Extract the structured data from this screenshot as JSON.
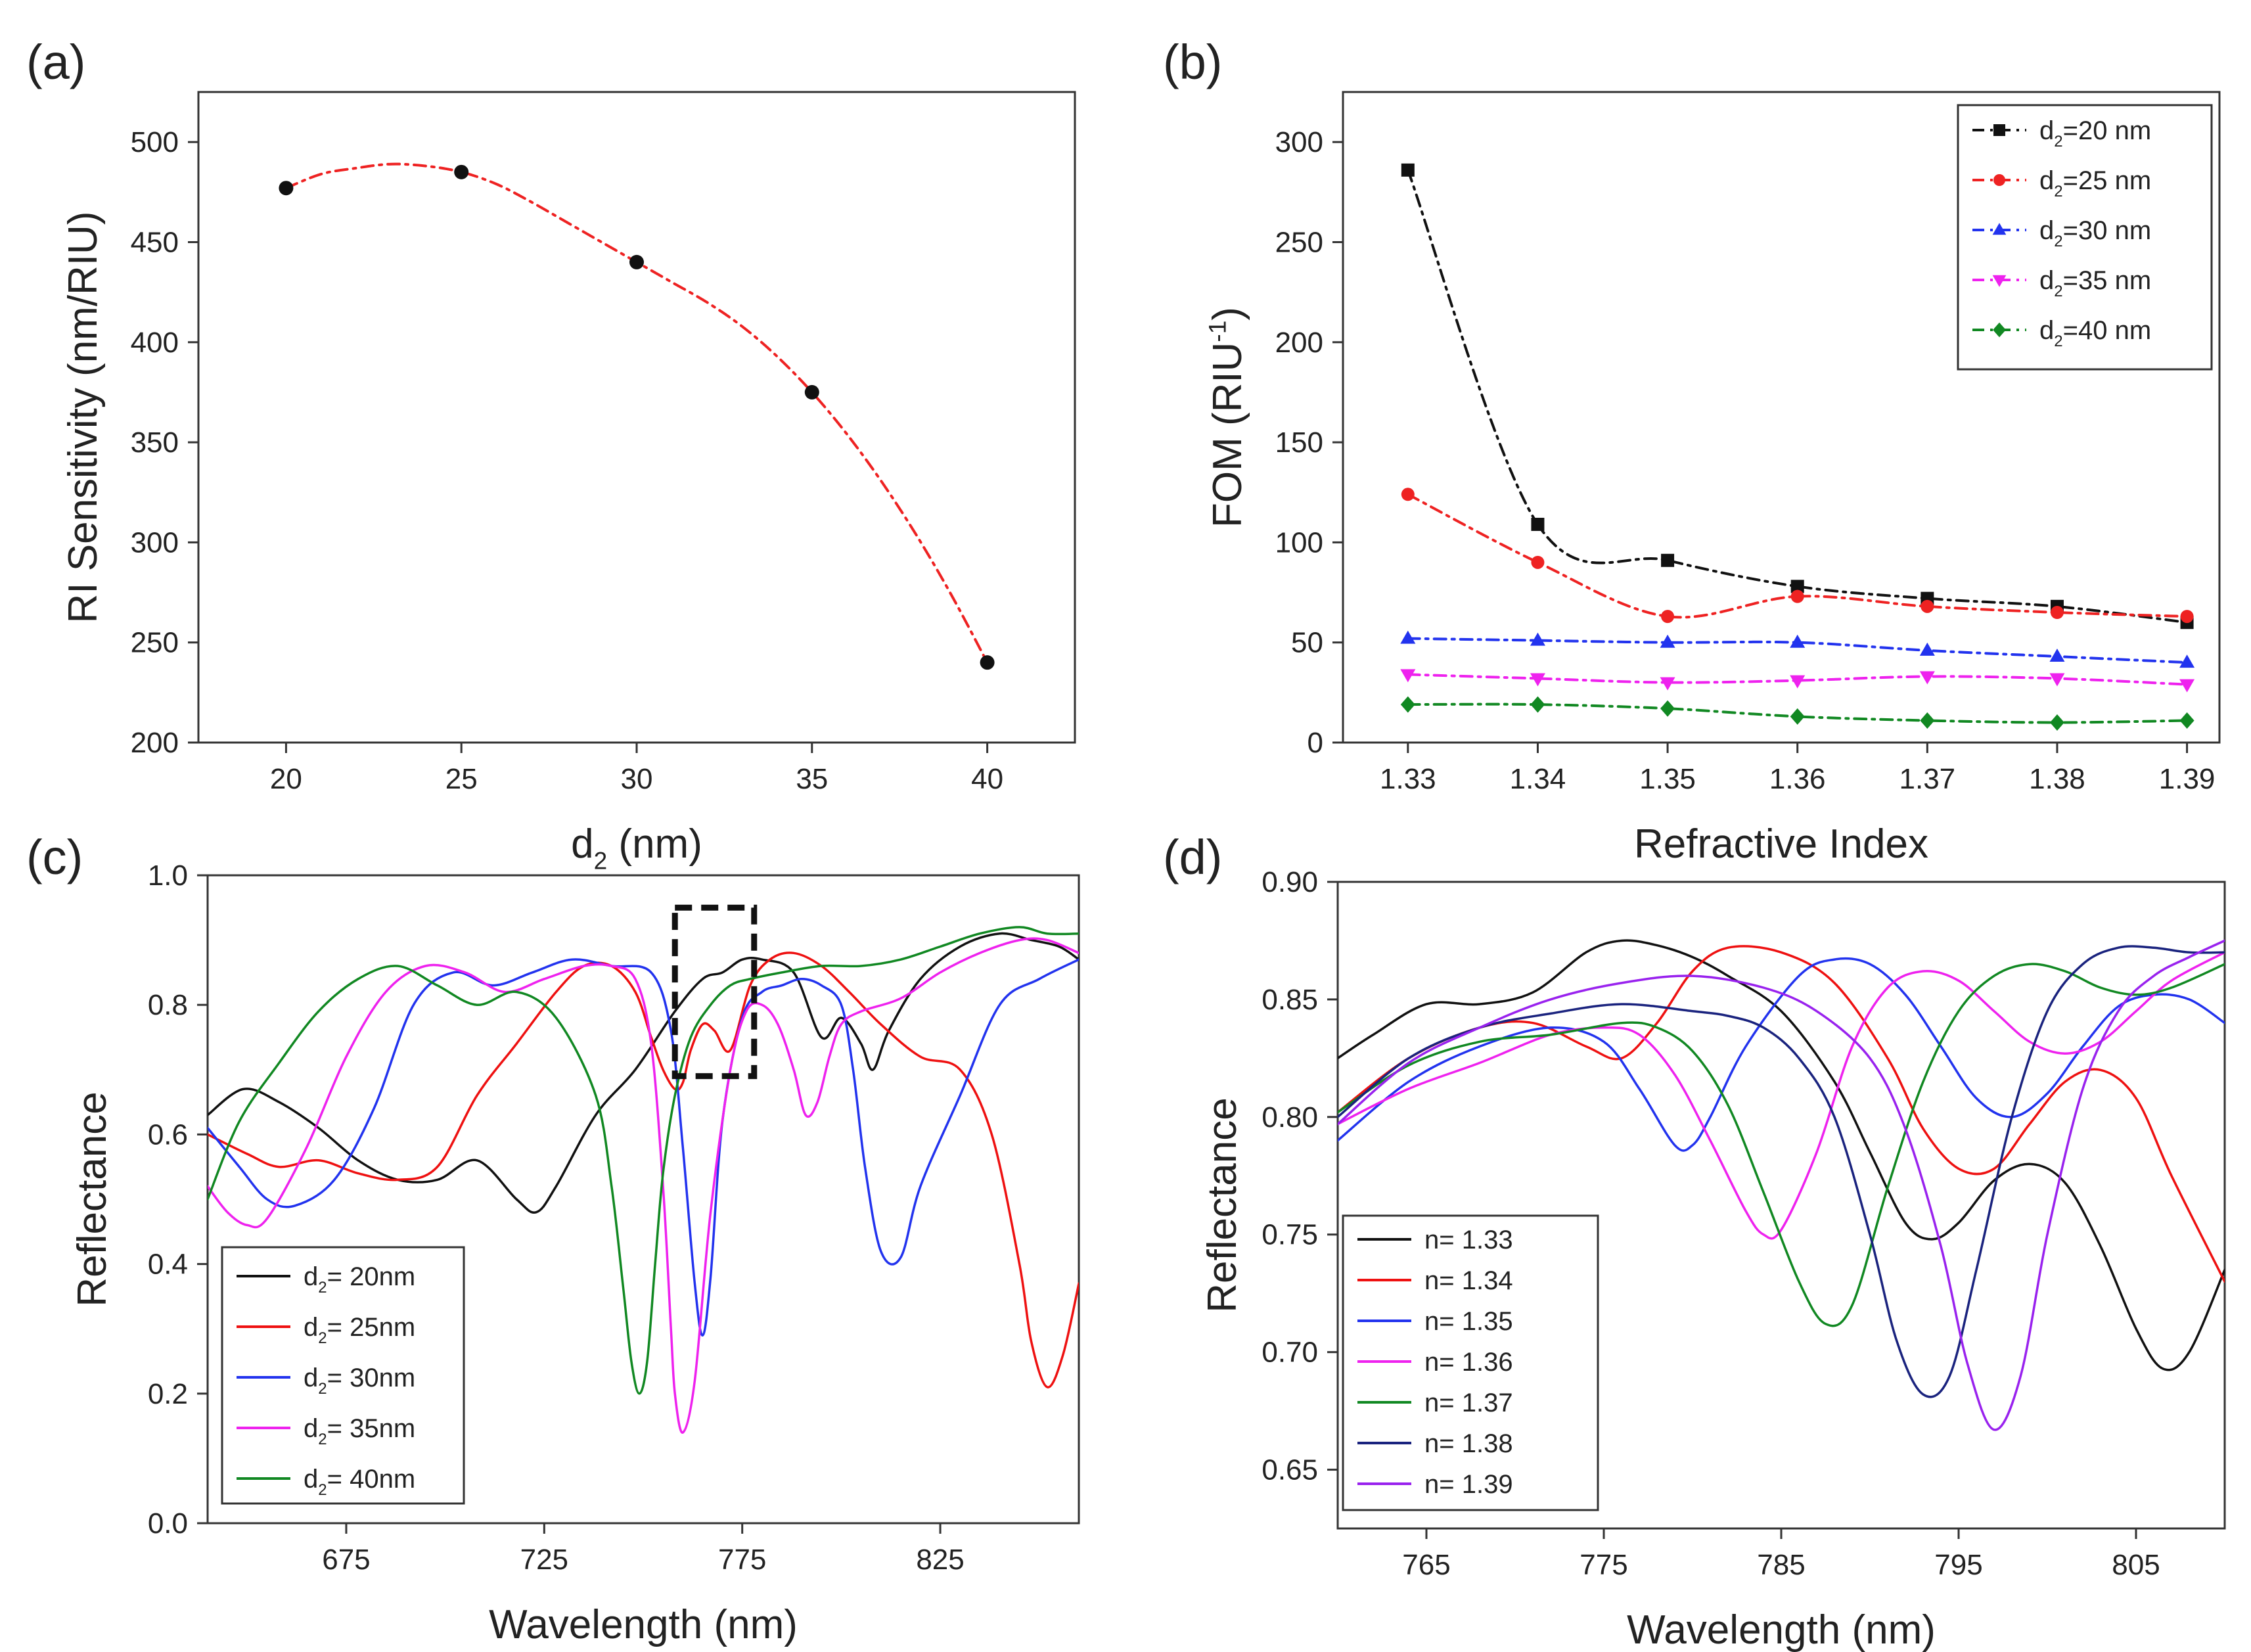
{
  "chart_data": [
    {
      "id": "a",
      "panel_label": "(a)",
      "type": "line",
      "xlabel": {
        "main": "d",
        "sub": "2",
        "rest": " (nm)"
      },
      "ylabel": "RI Sensitivity (nm/RIU)",
      "xlim": [
        17.5,
        42.5
      ],
      "ylim": [
        200,
        525
      ],
      "xticks": [
        20,
        25,
        30,
        35,
        40
      ],
      "yticks": [
        200,
        250,
        300,
        350,
        400,
        450,
        500
      ],
      "series": [
        {
          "name": "RI sensitivity",
          "color": "#ee2222",
          "marker": "circle",
          "marker_color": "#111111",
          "dash": "dashdot",
          "x": [
            20,
            25,
            30,
            35,
            40
          ],
          "y": [
            477,
            485,
            440,
            375,
            240
          ],
          "curve_x": [
            20,
            21,
            22,
            23,
            24,
            25,
            26,
            27,
            28,
            29,
            30,
            31,
            32,
            33,
            34,
            35,
            36,
            37,
            38,
            39,
            40
          ],
          "curve_y": [
            477,
            484,
            487,
            489,
            488,
            485,
            479,
            470,
            460,
            450,
            440,
            430,
            420,
            408,
            393,
            375,
            354,
            330,
            303,
            273,
            240
          ]
        }
      ]
    },
    {
      "id": "b",
      "panel_label": "(b)",
      "type": "line",
      "xlabel": {
        "main": "Refractive Index",
        "sub": "",
        "rest": ""
      },
      "ylabel": {
        "main": "FOM (RIU",
        "sup": "-1",
        "rest": ")"
      },
      "xlim": [
        1.325,
        1.3925
      ],
      "ylim": [
        0,
        325
      ],
      "xticks": [
        "1.33",
        "1.34",
        "1.35",
        "1.36",
        "1.37",
        "1.38",
        "1.39"
      ],
      "yticks": [
        0,
        50,
        100,
        150,
        200,
        250,
        300
      ],
      "legend_position": "top-right",
      "series": [
        {
          "name_main": "d",
          "name_sub": "2",
          "name_rest": "=20 nm",
          "color": "#111111",
          "marker": "square",
          "x": [
            1.33,
            1.34,
            1.35,
            1.36,
            1.37,
            1.38,
            1.39
          ],
          "y": [
            286,
            109,
            91,
            78,
            72,
            68,
            60
          ]
        },
        {
          "name_main": "d",
          "name_sub": "2",
          "name_rest": "=25 nm",
          "color": "#ee2222",
          "marker": "circle",
          "x": [
            1.33,
            1.34,
            1.35,
            1.36,
            1.37,
            1.38,
            1.39
          ],
          "y": [
            124,
            90,
            63,
            73,
            68,
            65,
            63
          ]
        },
        {
          "name_main": "d",
          "name_sub": "2",
          "name_rest": "=30 nm",
          "color": "#2233ee",
          "marker": "triangle-up",
          "x": [
            1.33,
            1.34,
            1.35,
            1.36,
            1.37,
            1.38,
            1.39
          ],
          "y": [
            52,
            51,
            50,
            50,
            46,
            43,
            40
          ]
        },
        {
          "name_main": "d",
          "name_sub": "2",
          "name_rest": "=35 nm",
          "color": "#ee22ee",
          "marker": "triangle-down",
          "x": [
            1.33,
            1.34,
            1.35,
            1.36,
            1.37,
            1.38,
            1.39
          ],
          "y": [
            34,
            32,
            30,
            31,
            33,
            32,
            29
          ]
        },
        {
          "name_main": "d",
          "name_sub": "2",
          "name_rest": "=40 nm",
          "color": "#118822",
          "marker": "diamond",
          "x": [
            1.33,
            1.34,
            1.35,
            1.36,
            1.37,
            1.38,
            1.39
          ],
          "y": [
            19,
            19,
            17,
            13,
            11,
            10,
            11
          ]
        }
      ]
    },
    {
      "id": "c",
      "panel_label": "(c)",
      "type": "line",
      "xlabel": {
        "main": "Wavelength (nm)",
        "sub": "",
        "rest": ""
      },
      "ylabel": "Reflectance",
      "xlim": [
        640,
        860
      ],
      "ylim": [
        0.0,
        1.0
      ],
      "xticks": [
        675,
        725,
        775,
        825
      ],
      "yticks": [
        "0.0",
        "0.2",
        "0.4",
        "0.6",
        "0.8",
        "1.0"
      ],
      "legend_position": "bottom-left",
      "highlight_box": {
        "x_range": [
          758,
          778
        ],
        "y_range": [
          0.69,
          0.95
        ]
      },
      "series": [
        {
          "name_main": "d",
          "name_sub": "2",
          "name_rest": "= 20nm",
          "color": "#111111",
          "x": [
            640,
            649,
            658,
            668,
            678,
            688,
            698,
            708,
            718,
            723,
            728,
            738,
            748,
            758,
            765,
            770,
            775,
            780,
            788,
            795,
            800,
            805,
            808,
            812,
            820,
            830,
            840,
            848,
            855,
            860
          ],
          "y": [
            0.63,
            0.67,
            0.65,
            0.61,
            0.56,
            0.53,
            0.53,
            0.56,
            0.5,
            0.48,
            0.52,
            0.63,
            0.7,
            0.79,
            0.84,
            0.85,
            0.87,
            0.87,
            0.85,
            0.75,
            0.78,
            0.74,
            0.7,
            0.76,
            0.84,
            0.89,
            0.91,
            0.9,
            0.89,
            0.87
          ]
        },
        {
          "name_main": "d",
          "name_sub": "2",
          "name_rest": "= 25nm",
          "color": "#ee1111",
          "x": [
            640,
            650,
            658,
            668,
            678,
            688,
            698,
            708,
            718,
            728,
            735,
            742,
            748,
            752,
            755,
            758,
            760,
            762,
            765,
            768,
            772,
            777,
            782,
            788,
            795,
            802,
            810,
            820,
            830,
            838,
            845,
            848,
            852,
            856,
            860
          ],
          "y": [
            0.6,
            0.57,
            0.55,
            0.56,
            0.54,
            0.53,
            0.55,
            0.66,
            0.74,
            0.82,
            0.86,
            0.86,
            0.82,
            0.75,
            0.7,
            0.67,
            0.68,
            0.73,
            0.77,
            0.76,
            0.73,
            0.83,
            0.87,
            0.88,
            0.86,
            0.82,
            0.77,
            0.72,
            0.7,
            0.6,
            0.4,
            0.28,
            0.21,
            0.26,
            0.37
          ]
        },
        {
          "name_main": "d",
          "name_sub": "2",
          "name_rest": "= 30nm",
          "color": "#2233ee",
          "x": [
            640,
            648,
            655,
            662,
            672,
            682,
            692,
            702,
            712,
            722,
            732,
            742,
            752,
            757,
            760,
            763,
            765,
            767,
            770,
            775,
            780,
            785,
            790,
            795,
            800,
            803,
            806,
            810,
            815,
            820,
            830,
            840,
            850,
            860
          ],
          "y": [
            0.61,
            0.55,
            0.5,
            0.49,
            0.53,
            0.64,
            0.8,
            0.85,
            0.83,
            0.85,
            0.87,
            0.86,
            0.85,
            0.76,
            0.58,
            0.37,
            0.29,
            0.38,
            0.62,
            0.78,
            0.82,
            0.83,
            0.84,
            0.83,
            0.8,
            0.7,
            0.55,
            0.42,
            0.41,
            0.52,
            0.66,
            0.8,
            0.84,
            0.87
          ]
        },
        {
          "name_main": "d",
          "name_sub": "2",
          "name_rest": "= 35nm",
          "color": "#ee22ee",
          "x": [
            640,
            645,
            650,
            655,
            665,
            675,
            685,
            695,
            705,
            715,
            725,
            735,
            742,
            748,
            752,
            755,
            757,
            758,
            760,
            763,
            767,
            772,
            776,
            780,
            784,
            788,
            791,
            794,
            797,
            800,
            805,
            815,
            825,
            835,
            845,
            852,
            860
          ],
          "y": [
            0.52,
            0.48,
            0.46,
            0.47,
            0.58,
            0.72,
            0.82,
            0.86,
            0.85,
            0.82,
            0.84,
            0.86,
            0.86,
            0.84,
            0.74,
            0.52,
            0.3,
            0.2,
            0.14,
            0.22,
            0.48,
            0.7,
            0.79,
            0.8,
            0.77,
            0.7,
            0.63,
            0.65,
            0.72,
            0.77,
            0.79,
            0.81,
            0.85,
            0.88,
            0.9,
            0.9,
            0.88
          ]
        },
        {
          "name_main": "d",
          "name_sub": "2",
          "name_rest": "= 40nm",
          "color": "#118822",
          "x": [
            640,
            648,
            658,
            668,
            678,
            688,
            698,
            708,
            718,
            728,
            738,
            742,
            745,
            747,
            749,
            751,
            753,
            755,
            758,
            762,
            767,
            772,
            777,
            785,
            795,
            805,
            815,
            825,
            835,
            845,
            852,
            860
          ],
          "y": [
            0.5,
            0.62,
            0.71,
            0.79,
            0.84,
            0.86,
            0.83,
            0.8,
            0.82,
            0.78,
            0.66,
            0.52,
            0.36,
            0.25,
            0.2,
            0.25,
            0.4,
            0.54,
            0.66,
            0.75,
            0.8,
            0.83,
            0.84,
            0.85,
            0.86,
            0.86,
            0.87,
            0.89,
            0.91,
            0.92,
            0.91,
            0.91
          ]
        }
      ]
    },
    {
      "id": "d",
      "panel_label": "(d)",
      "type": "line",
      "xlabel": {
        "main": "Wavelength (nm)",
        "sub": "",
        "rest": ""
      },
      "ylabel": "Reflectance",
      "xlim": [
        760,
        810
      ],
      "ylim": [
        0.625,
        0.9
      ],
      "xticks": [
        765,
        775,
        785,
        795,
        805
      ],
      "yticks": [
        "0.65",
        "0.70",
        "0.75",
        "0.80",
        "0.85",
        "0.90"
      ],
      "legend_position": "bottom-left",
      "series": [
        {
          "name": "n= 1.33",
          "color": "#111111",
          "x": [
            760,
            762,
            765,
            768,
            771,
            774,
            776,
            778,
            780,
            782,
            785,
            788,
            790,
            792,
            793.5,
            795,
            797,
            799,
            801,
            803,
            805,
            806.5,
            808,
            810
          ],
          "y": [
            0.825,
            0.835,
            0.848,
            0.848,
            0.853,
            0.87,
            0.875,
            0.873,
            0.868,
            0.86,
            0.845,
            0.815,
            0.785,
            0.755,
            0.748,
            0.755,
            0.773,
            0.78,
            0.772,
            0.745,
            0.71,
            0.693,
            0.7,
            0.735
          ]
        },
        {
          "name": "n= 1.34",
          "color": "#ee1111",
          "x": [
            760,
            764,
            768,
            771,
            774,
            776,
            778,
            780,
            782,
            785,
            788,
            791,
            793,
            795,
            797,
            799,
            801,
            803,
            805,
            807,
            810
          ],
          "y": [
            0.802,
            0.825,
            0.838,
            0.84,
            0.83,
            0.825,
            0.84,
            0.862,
            0.872,
            0.87,
            0.857,
            0.825,
            0.795,
            0.778,
            0.778,
            0.797,
            0.815,
            0.82,
            0.808,
            0.775,
            0.73
          ]
        },
        {
          "name": "n= 1.35",
          "color": "#2233ee",
          "x": [
            760,
            764,
            768,
            772,
            775,
            777,
            779,
            780,
            781,
            783,
            786,
            788,
            790,
            792,
            794,
            796,
            798,
            800,
            802,
            804,
            806,
            808,
            810
          ],
          "y": [
            0.79,
            0.815,
            0.83,
            0.838,
            0.832,
            0.812,
            0.788,
            0.788,
            0.8,
            0.83,
            0.86,
            0.867,
            0.865,
            0.852,
            0.83,
            0.808,
            0.8,
            0.81,
            0.83,
            0.847,
            0.852,
            0.85,
            0.84
          ]
        },
        {
          "name": "n= 1.36",
          "color": "#ee22ee",
          "x": [
            760,
            764,
            768,
            772,
            775,
            777,
            779,
            781,
            783,
            784,
            785,
            787,
            789,
            791,
            793,
            795,
            797,
            799,
            801,
            803,
            805,
            807,
            810
          ],
          "y": [
            0.797,
            0.812,
            0.823,
            0.835,
            0.838,
            0.835,
            0.818,
            0.79,
            0.76,
            0.75,
            0.752,
            0.785,
            0.83,
            0.855,
            0.862,
            0.858,
            0.845,
            0.832,
            0.827,
            0.832,
            0.845,
            0.858,
            0.87
          ]
        },
        {
          "name": "n= 1.37",
          "color": "#118822",
          "x": [
            760,
            764,
            768,
            772,
            776,
            778,
            780,
            782,
            784,
            786,
            787.5,
            789,
            791,
            793,
            795,
            797,
            799,
            801,
            803,
            805,
            807,
            810
          ],
          "y": [
            0.802,
            0.822,
            0.832,
            0.835,
            0.84,
            0.838,
            0.828,
            0.805,
            0.768,
            0.73,
            0.712,
            0.72,
            0.77,
            0.815,
            0.845,
            0.86,
            0.865,
            0.862,
            0.855,
            0.852,
            0.855,
            0.865
          ]
        },
        {
          "name": "n= 1.38",
          "color": "#1a237e",
          "x": [
            760,
            764,
            768,
            772,
            776,
            780,
            782,
            784,
            786,
            788,
            790,
            791.5,
            793,
            794.5,
            796,
            798,
            800,
            802,
            804,
            806,
            808,
            810
          ],
          "y": [
            0.8,
            0.825,
            0.838,
            0.844,
            0.848,
            0.845,
            0.843,
            0.838,
            0.825,
            0.8,
            0.75,
            0.705,
            0.682,
            0.69,
            0.735,
            0.8,
            0.845,
            0.865,
            0.872,
            0.872,
            0.87,
            0.87
          ]
        },
        {
          "name": "n= 1.39",
          "color": "#9922ee",
          "x": [
            760,
            764,
            768,
            772,
            776,
            780,
            784,
            787,
            790,
            792,
            794,
            795.5,
            797,
            798.5,
            800,
            802,
            804,
            806,
            808,
            810
          ],
          "y": [
            0.797,
            0.823,
            0.838,
            0.85,
            0.857,
            0.86,
            0.855,
            0.845,
            0.825,
            0.795,
            0.745,
            0.695,
            0.667,
            0.69,
            0.75,
            0.812,
            0.845,
            0.86,
            0.868,
            0.875
          ]
        }
      ]
    }
  ]
}
